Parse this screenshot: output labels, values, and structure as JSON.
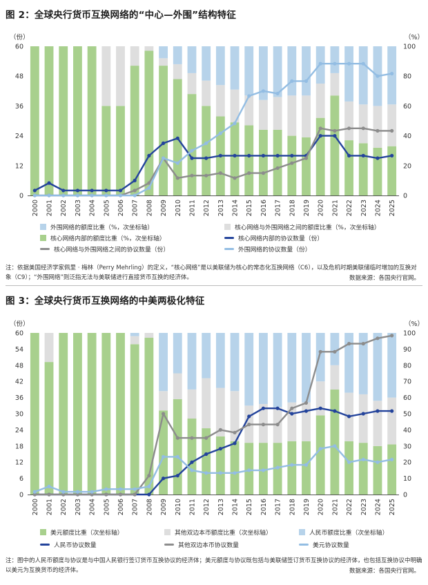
{
  "fig2": {
    "title": "图 2：全球央行货币互换网络的“中心—外围”结构特征",
    "left_unit": "（份）",
    "right_unit": "（%）",
    "note": "注：依据美国经济学家佩里 · 梅林（Perry Mehrling）的定义，“核心网络”是以美联储为核心的常态化互换网络（C6），以及危机时期美联储临时增加的互换对象（C9）；“外围网络”则泛指无法与美联储进行直接货币互换的经济体。",
    "source": "数据来源：各国央行官网。",
    "legend": [
      {
        "label": "外围网络的额度比重（%，次坐标轴）",
        "kind": "box",
        "color": "#b7d3ea"
      },
      {
        "label": "核心网络与外围网络之间的额度比重（%，次坐标轴）",
        "kind": "box",
        "color": "#dedede"
      },
      {
        "label": "核心网络内部的额度比重（%，次坐标轴）",
        "kind": "box",
        "color": "#a8d08d"
      },
      {
        "label": "核心网络内部的协议数量（份）",
        "kind": "line",
        "color": "#23439b"
      },
      {
        "label": "核心网络与外围网络之间的协议数量（份）",
        "kind": "line",
        "color": "#8c8c8c"
      },
      {
        "label": "外围网络的协议数量（份）",
        "kind": "line",
        "color": "#93bde3"
      }
    ]
  },
  "fig3": {
    "title": "图 3：全球央行货币互换网络的中美两极化特征",
    "left_unit": "（份）",
    "right_unit": "（%）",
    "note": "注：图中的人民币额度与协议是与中国人民银行签订货币互换协议的经济体；美元额度与协议既包括与美联储签订货币互换协议的经济体，也包括互换协议中明确以美元为互换货币的经济体。",
    "source": "数据来源：各国央行官网。",
    "legend": [
      {
        "label": "美元额度比重（次坐标轴）",
        "kind": "box",
        "color": "#a8d08d"
      },
      {
        "label": "其他双边本币额度比重（次坐标轴）",
        "kind": "box",
        "color": "#dedede"
      },
      {
        "label": "人民币额度比重（次坐标轴）",
        "kind": "box",
        "color": "#b7d3ea"
      },
      {
        "label": "人民币协议数量",
        "kind": "line",
        "color": "#23439b"
      },
      {
        "label": "其他双边本币协议数量",
        "kind": "line",
        "color": "#8c8c8c"
      },
      {
        "label": "美元协议数量",
        "kind": "line",
        "color": "#93bde3"
      }
    ]
  },
  "chart_data": [
    {
      "type": "bar",
      "stacked": true,
      "categories": [
        "2000",
        "2001",
        "2002",
        "2003",
        "2004",
        "2005",
        "2006",
        "2007",
        "2008",
        "2009",
        "2010",
        "2011",
        "2012",
        "2013",
        "2014",
        "2015",
        "2016",
        "2017",
        "2018",
        "2019",
        "2020",
        "2021",
        "2022",
        "2023",
        "2024",
        "2025"
      ],
      "left_axis": {
        "ticks": [
          0,
          12,
          24,
          36,
          48,
          60
        ],
        "ylim": [
          0,
          60
        ],
        "label": "（份）"
      },
      "right_axis": {
        "ticks": [
          0,
          20,
          40,
          60,
          80,
          100
        ],
        "ylim": [
          0,
          100
        ],
        "label": "（%）"
      },
      "bar_series": [
        {
          "name": "核心网络内部的额度比重（%，次坐标轴）",
          "axis": "right",
          "color": "#a8d08d",
          "values": [
            100,
            100,
            100,
            100,
            100,
            60,
            60,
            87,
            97,
            87,
            78,
            68,
            60,
            53,
            49,
            47,
            44,
            44,
            40,
            39,
            52,
            67,
            37,
            35,
            32,
            33
          ]
        },
        {
          "name": "核心网络与外围网络之间的额度比重（%，次坐标轴）",
          "axis": "right",
          "color": "#dedede",
          "values": [
            0,
            0,
            0,
            0,
            0,
            40,
            40,
            13,
            3,
            5,
            10,
            14,
            17,
            21,
            22,
            20,
            20,
            22,
            27,
            28,
            23,
            15,
            26,
            26,
            28,
            28
          ]
        },
        {
          "name": "外围网络的额度比重（%，次坐标轴）",
          "axis": "right",
          "color": "#b7d3ea",
          "values": [
            0,
            0,
            0,
            0,
            0,
            0,
            0,
            0,
            0,
            8,
            12,
            18,
            23,
            26,
            29,
            33,
            36,
            34,
            33,
            33,
            25,
            18,
            37,
            39,
            40,
            39
          ]
        }
      ],
      "line_series": [
        {
          "name": "核心网络内部的协议数量（份）",
          "axis": "left",
          "color": "#23439b",
          "values": [
            2,
            5,
            2,
            2,
            2,
            2,
            2,
            6,
            16,
            21,
            23,
            15,
            15,
            16,
            16,
            16,
            16,
            16,
            16,
            16,
            24,
            24,
            16,
            16,
            15,
            16
          ]
        },
        {
          "name": "核心网络与外围网络之间的协议数量（份）",
          "axis": "left",
          "color": "#8c8c8c",
          "values": [
            0,
            0,
            0,
            0,
            0,
            0,
            0,
            2,
            5,
            15,
            7,
            8,
            8,
            9,
            7,
            9,
            9,
            11,
            13,
            15,
            27,
            26,
            27,
            27,
            26,
            26
          ]
        },
        {
          "name": "外围网络的协议数量（份）",
          "axis": "left",
          "color": "#93bde3",
          "values": [
            0,
            0,
            0,
            0,
            0,
            0,
            0,
            0,
            3,
            15,
            13,
            18,
            21,
            25,
            29,
            40,
            42,
            41,
            46,
            46,
            53,
            53,
            53,
            53,
            48,
            49
          ]
        }
      ]
    },
    {
      "type": "bar",
      "stacked": true,
      "categories": [
        "2000",
        "2001",
        "2002",
        "2003",
        "2004",
        "2005",
        "2006",
        "2007",
        "2008",
        "2009",
        "2010",
        "2011",
        "2012",
        "2013",
        "2014",
        "2015",
        "2016",
        "2017",
        "2018",
        "2019",
        "2020",
        "2021",
        "2022",
        "2023",
        "2024",
        "2025"
      ],
      "left_axis": {
        "ticks": [
          0,
          6,
          12,
          18,
          24,
          30,
          36,
          42,
          48,
          54,
          60
        ],
        "ylim": [
          0,
          60
        ],
        "label": "（份）"
      },
      "right_axis": {
        "ticks": [
          0,
          10,
          20,
          30,
          40,
          50,
          60,
          70,
          80,
          90,
          100
        ],
        "ylim": [
          0,
          100
        ],
        "label": "（%）"
      },
      "bar_series": [
        {
          "name": "美元额度比重（次坐标轴）",
          "axis": "right",
          "color": "#a8d08d",
          "values": [
            100,
            82,
            100,
            100,
            100,
            100,
            100,
            93,
            97,
            52,
            59,
            47,
            41,
            36,
            33,
            32,
            32,
            32,
            33,
            33,
            49,
            65,
            33,
            32,
            30,
            31
          ]
        },
        {
          "name": "其他双边本币额度比重（次坐标轴）",
          "axis": "right",
          "color": "#dedede",
          "values": [
            0,
            18,
            0,
            0,
            0,
            0,
            0,
            5,
            3,
            12,
            16,
            18,
            31,
            30,
            31,
            23,
            24,
            22,
            24,
            24,
            21,
            15,
            30,
            30,
            28,
            29
          ]
        },
        {
          "name": "人民币额度比重（次坐标轴）",
          "axis": "right",
          "color": "#b7d3ea",
          "values": [
            0,
            0,
            0,
            0,
            0,
            0,
            0,
            2,
            0,
            36,
            25,
            35,
            28,
            34,
            36,
            45,
            44,
            46,
            43,
            43,
            30,
            20,
            37,
            38,
            42,
            40
          ]
        }
      ],
      "line_series": [
        {
          "name": "人民币协议数量",
          "axis": "left",
          "color": "#23439b",
          "values": [
            0,
            0,
            0,
            0,
            0,
            0,
            0,
            0,
            0,
            6,
            7,
            12,
            15,
            17,
            19,
            29,
            32,
            32,
            30,
            31,
            32,
            31,
            29,
            30,
            31,
            31
          ]
        },
        {
          "name": "其他双边本币协议数量",
          "axis": "left",
          "color": "#8c8c8c",
          "values": [
            0,
            0,
            0,
            0,
            0,
            0,
            0,
            0,
            7,
            30,
            21,
            21,
            21,
            24,
            23,
            26,
            26,
            26,
            32,
            34,
            53,
            53,
            56,
            56,
            58,
            59
          ]
        },
        {
          "name": "美元协议数量",
          "axis": "left",
          "color": "#93bde3",
          "values": [
            1,
            3,
            1,
            1,
            1,
            2,
            2,
            2,
            3,
            14,
            14,
            9,
            8,
            8,
            8,
            9,
            9,
            10,
            11,
            11,
            17,
            18,
            12,
            13,
            12,
            13
          ]
        }
      ]
    }
  ]
}
